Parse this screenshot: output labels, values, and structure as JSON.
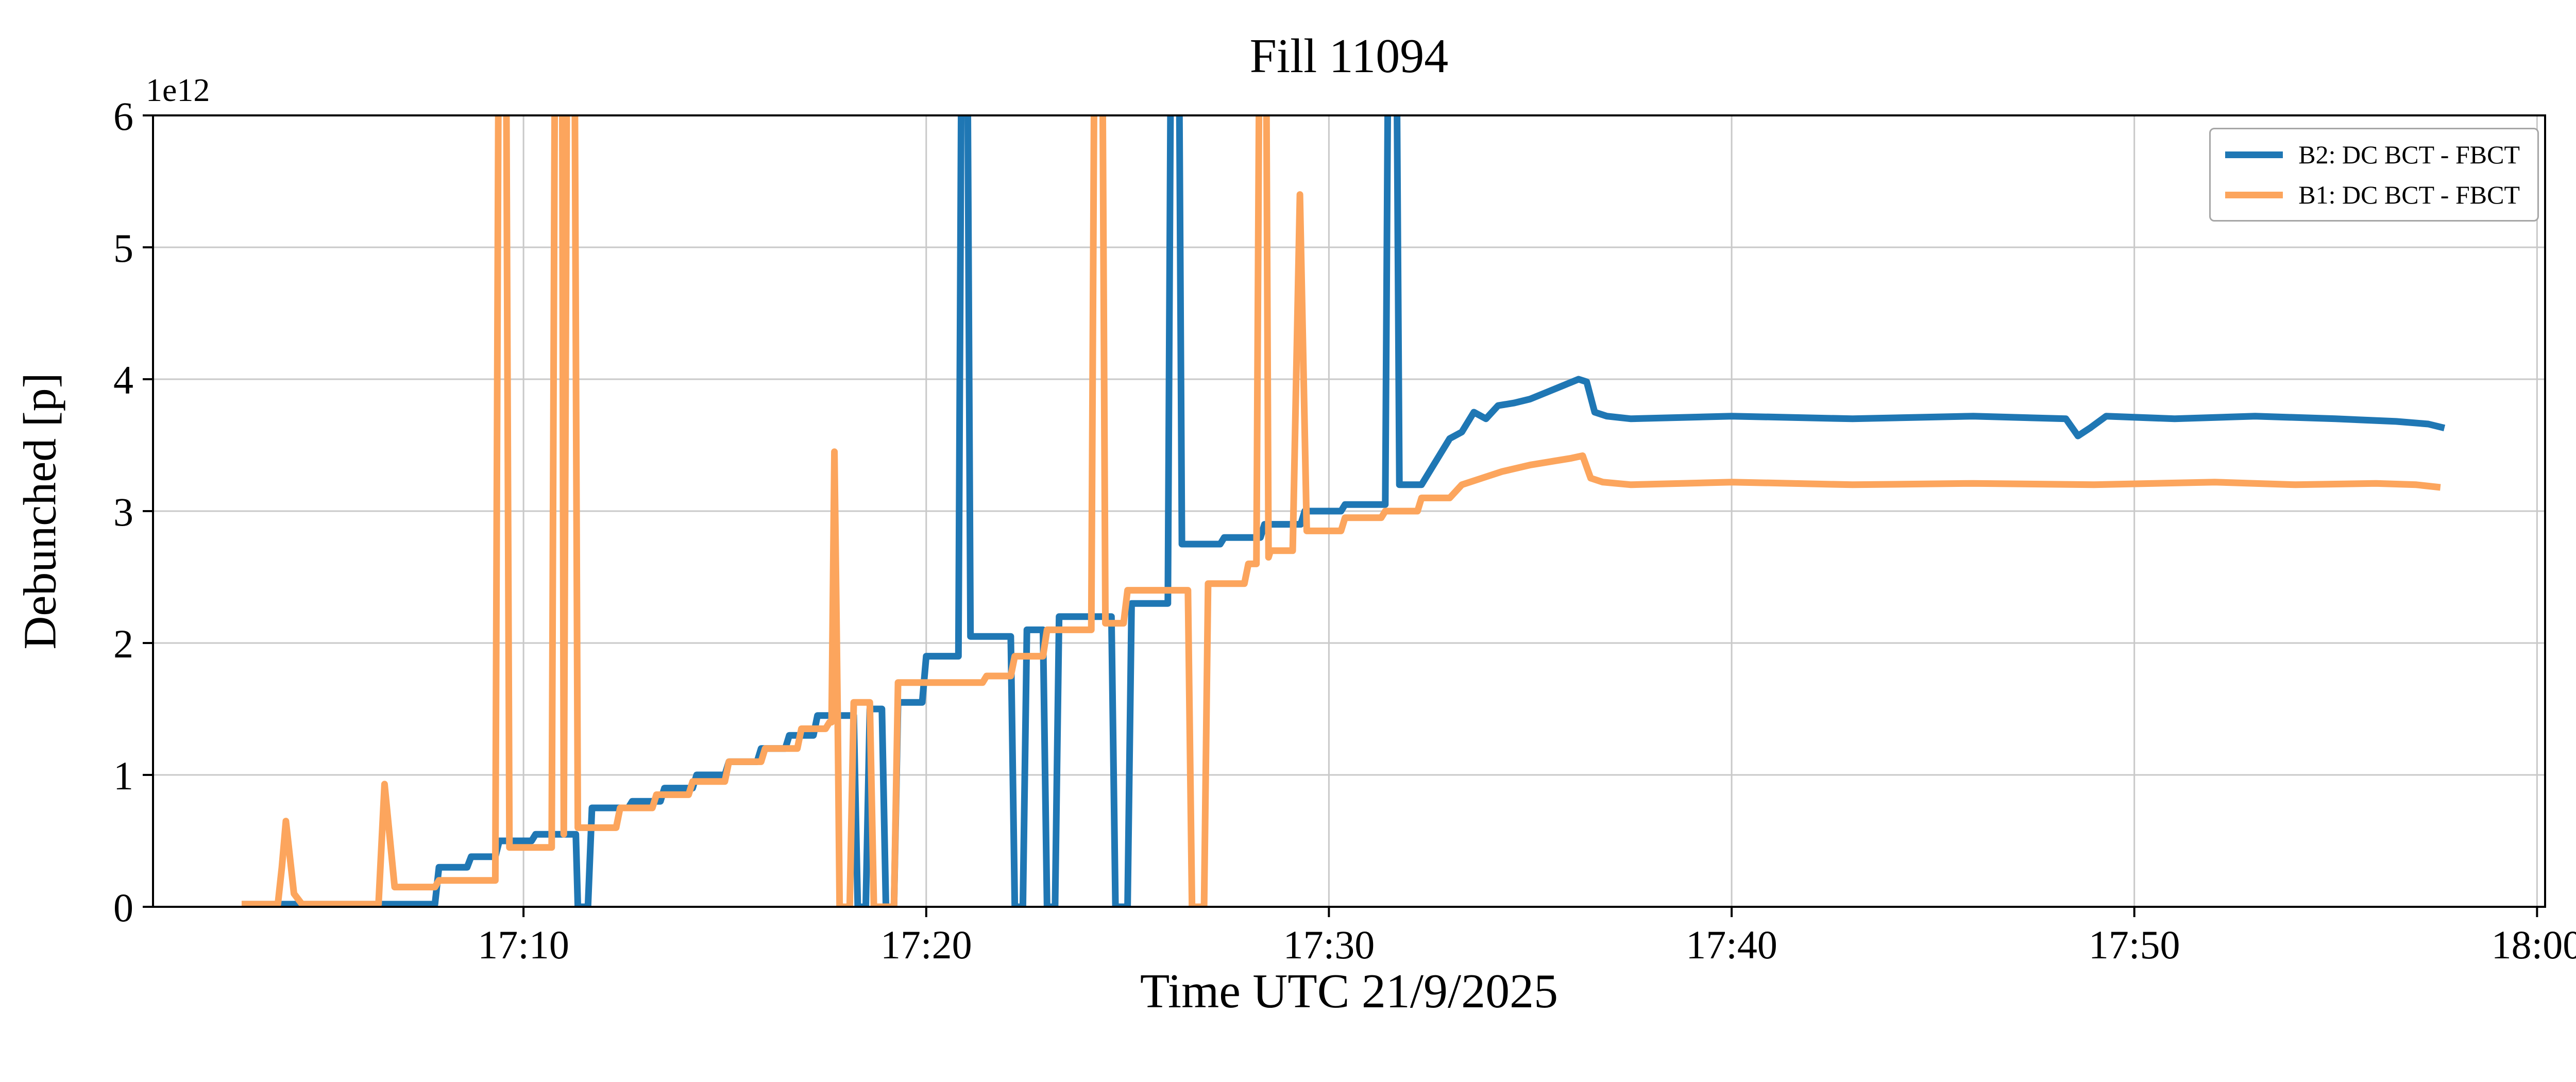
{
  "title": "Fill 11094",
  "xlabel": "Time UTC 21/9/2025",
  "ylabel": "Debunched [p]",
  "offset_text": "1e12",
  "legend": {
    "entries": [
      {
        "label": "B2: DC BCT - FBCT",
        "color": "#1f77b4"
      },
      {
        "label": "B1: DC BCT - FBCT",
        "color": "#fca55d"
      }
    ]
  },
  "chart_data": {
    "type": "line",
    "title": "Fill 11094",
    "xlabel": "Time UTC 21/9/2025",
    "ylabel": "Debunched [p]",
    "y_multiplier": "1e12",
    "x_unit": "minutes after 17:00 UTC",
    "xlim": [
      0.8,
      60.2
    ],
    "ylim": [
      0,
      6
    ],
    "grid": true,
    "legend_position": "upper right",
    "x_ticks": [
      {
        "t": 10,
        "label": "17:10"
      },
      {
        "t": 20,
        "label": "17:20"
      },
      {
        "t": 30,
        "label": "17:30"
      },
      {
        "t": 40,
        "label": "17:40"
      },
      {
        "t": 50,
        "label": "17:50"
      },
      {
        "t": 60,
        "label": "18:00"
      }
    ],
    "y_ticks": [
      {
        "v": 0,
        "label": "0"
      },
      {
        "v": 1,
        "label": "1"
      },
      {
        "v": 2,
        "label": "2"
      },
      {
        "v": 3,
        "label": "3"
      },
      {
        "v": 4,
        "label": "4"
      },
      {
        "v": 5,
        "label": "5"
      },
      {
        "v": 6,
        "label": "6"
      }
    ],
    "series": [
      {
        "name": "B2: DC BCT - FBCT",
        "color": "#1f77b4",
        "points": [
          [
            3.0,
            0.02
          ],
          [
            7.8,
            0.02
          ],
          [
            7.9,
            0.3
          ],
          [
            8.6,
            0.3
          ],
          [
            8.7,
            0.38
          ],
          [
            9.3,
            0.38
          ],
          [
            9.4,
            0.5
          ],
          [
            10.2,
            0.5
          ],
          [
            10.3,
            0.55
          ],
          [
            11.3,
            0.55
          ],
          [
            11.35,
            0.0
          ],
          [
            11.6,
            0.0
          ],
          [
            11.7,
            0.75
          ],
          [
            12.6,
            0.75
          ],
          [
            12.7,
            0.8
          ],
          [
            13.4,
            0.8
          ],
          [
            13.5,
            0.9
          ],
          [
            14.2,
            0.9
          ],
          [
            14.3,
            1.0
          ],
          [
            15.0,
            1.0
          ],
          [
            15.1,
            1.1
          ],
          [
            15.8,
            1.1
          ],
          [
            15.9,
            1.2
          ],
          [
            16.5,
            1.2
          ],
          [
            16.6,
            1.3
          ],
          [
            17.2,
            1.3
          ],
          [
            17.3,
            1.45
          ],
          [
            18.2,
            1.45
          ],
          [
            18.3,
            0.0
          ],
          [
            18.5,
            0.0
          ],
          [
            18.6,
            1.5
          ],
          [
            18.9,
            1.5
          ],
          [
            19.0,
            0.0
          ],
          [
            19.2,
            0.0
          ],
          [
            19.3,
            1.55
          ],
          [
            19.9,
            1.55
          ],
          [
            20.0,
            1.9
          ],
          [
            20.8,
            1.9
          ],
          [
            20.9,
            8.0
          ],
          [
            21.0,
            8.0
          ],
          [
            21.1,
            2.05
          ],
          [
            22.1,
            2.05
          ],
          [
            22.2,
            0.0
          ],
          [
            22.4,
            0.0
          ],
          [
            22.5,
            2.1
          ],
          [
            22.9,
            2.1
          ],
          [
            23.0,
            0.0
          ],
          [
            23.2,
            0.0
          ],
          [
            23.3,
            2.2
          ],
          [
            24.6,
            2.2
          ],
          [
            24.7,
            0.0
          ],
          [
            25.0,
            0.0
          ],
          [
            25.1,
            2.3
          ],
          [
            26.0,
            2.3
          ],
          [
            26.1,
            8.0
          ],
          [
            26.25,
            8.0
          ],
          [
            26.35,
            2.75
          ],
          [
            27.3,
            2.75
          ],
          [
            27.4,
            2.8
          ],
          [
            28.3,
            2.8
          ],
          [
            28.4,
            2.9
          ],
          [
            29.3,
            2.9
          ],
          [
            29.4,
            3.0
          ],
          [
            30.3,
            3.0
          ],
          [
            30.4,
            3.05
          ],
          [
            31.4,
            3.05
          ],
          [
            31.5,
            8.0
          ],
          [
            31.65,
            8.0
          ],
          [
            31.75,
            3.2
          ],
          [
            32.3,
            3.2
          ],
          [
            32.6,
            3.35
          ],
          [
            33.0,
            3.55
          ],
          [
            33.3,
            3.6
          ],
          [
            33.6,
            3.75
          ],
          [
            33.9,
            3.7
          ],
          [
            34.2,
            3.8
          ],
          [
            34.6,
            3.82
          ],
          [
            35.0,
            3.85
          ],
          [
            35.4,
            3.9
          ],
          [
            35.8,
            3.95
          ],
          [
            36.2,
            4.0
          ],
          [
            36.4,
            3.98
          ],
          [
            36.6,
            3.75
          ],
          [
            36.9,
            3.72
          ],
          [
            37.5,
            3.7
          ],
          [
            40.0,
            3.72
          ],
          [
            43.0,
            3.7
          ],
          [
            46.0,
            3.72
          ],
          [
            48.3,
            3.7
          ],
          [
            48.6,
            3.57
          ],
          [
            48.9,
            3.63
          ],
          [
            49.3,
            3.72
          ],
          [
            51.0,
            3.7
          ],
          [
            53.0,
            3.72
          ],
          [
            55.0,
            3.7
          ],
          [
            56.5,
            3.68
          ],
          [
            57.3,
            3.66
          ],
          [
            57.7,
            3.63
          ]
        ]
      },
      {
        "name": "B1: DC BCT - FBCT",
        "color": "#fca55d",
        "points": [
          [
            3.0,
            0.02
          ],
          [
            3.9,
            0.02
          ],
          [
            4.0,
            0.3
          ],
          [
            4.1,
            0.65
          ],
          [
            4.3,
            0.1
          ],
          [
            4.5,
            0.02
          ],
          [
            6.4,
            0.02
          ],
          [
            6.55,
            0.93
          ],
          [
            6.8,
            0.15
          ],
          [
            7.8,
            0.15
          ],
          [
            7.9,
            0.2
          ],
          [
            9.3,
            0.2
          ],
          [
            9.4,
            8.0
          ],
          [
            9.55,
            8.0
          ],
          [
            9.65,
            0.45
          ],
          [
            10.7,
            0.45
          ],
          [
            10.8,
            8.0
          ],
          [
            10.95,
            8.0
          ],
          [
            11.0,
            0.55
          ],
          [
            11.1,
            8.0
          ],
          [
            11.25,
            8.0
          ],
          [
            11.35,
            0.6
          ],
          [
            12.3,
            0.6
          ],
          [
            12.4,
            0.75
          ],
          [
            13.2,
            0.75
          ],
          [
            13.3,
            0.85
          ],
          [
            14.1,
            0.85
          ],
          [
            14.2,
            0.95
          ],
          [
            15.0,
            0.95
          ],
          [
            15.1,
            1.1
          ],
          [
            15.9,
            1.1
          ],
          [
            16.0,
            1.2
          ],
          [
            16.8,
            1.2
          ],
          [
            16.9,
            1.35
          ],
          [
            17.5,
            1.35
          ],
          [
            17.6,
            1.4
          ],
          [
            17.65,
            1.4
          ],
          [
            17.72,
            3.45
          ],
          [
            17.8,
            1.5
          ],
          [
            17.85,
            0.0
          ],
          [
            18.1,
            0.0
          ],
          [
            18.2,
            1.55
          ],
          [
            18.6,
            1.55
          ],
          [
            18.7,
            0.0
          ],
          [
            19.2,
            0.0
          ],
          [
            19.3,
            1.7
          ],
          [
            21.4,
            1.7
          ],
          [
            21.5,
            1.75
          ],
          [
            22.1,
            1.75
          ],
          [
            22.2,
            1.9
          ],
          [
            22.9,
            1.9
          ],
          [
            23.0,
            2.1
          ],
          [
            24.1,
            2.1
          ],
          [
            24.2,
            8.0
          ],
          [
            24.35,
            8.0
          ],
          [
            24.45,
            2.15
          ],
          [
            24.9,
            2.15
          ],
          [
            25.0,
            2.4
          ],
          [
            26.5,
            2.4
          ],
          [
            26.6,
            0.0
          ],
          [
            26.9,
            0.0
          ],
          [
            27.0,
            2.45
          ],
          [
            27.9,
            2.45
          ],
          [
            28.0,
            2.6
          ],
          [
            28.2,
            2.6
          ],
          [
            28.3,
            8.0
          ],
          [
            28.42,
            8.0
          ],
          [
            28.5,
            2.65
          ],
          [
            28.55,
            2.7
          ],
          [
            29.1,
            2.7
          ],
          [
            29.28,
            5.4
          ],
          [
            29.45,
            2.85
          ],
          [
            30.3,
            2.85
          ],
          [
            30.4,
            2.95
          ],
          [
            31.3,
            2.95
          ],
          [
            31.4,
            3.0
          ],
          [
            32.2,
            3.0
          ],
          [
            32.3,
            3.1
          ],
          [
            33.0,
            3.1
          ],
          [
            33.3,
            3.2
          ],
          [
            33.8,
            3.25
          ],
          [
            34.3,
            3.3
          ],
          [
            35.0,
            3.35
          ],
          [
            35.6,
            3.38
          ],
          [
            36.0,
            3.4
          ],
          [
            36.3,
            3.42
          ],
          [
            36.5,
            3.25
          ],
          [
            36.8,
            3.22
          ],
          [
            37.5,
            3.2
          ],
          [
            40.0,
            3.22
          ],
          [
            43.0,
            3.2
          ],
          [
            46.0,
            3.21
          ],
          [
            49.0,
            3.2
          ],
          [
            52.0,
            3.22
          ],
          [
            54.0,
            3.2
          ],
          [
            56.0,
            3.21
          ],
          [
            57.0,
            3.2
          ],
          [
            57.6,
            3.18
          ]
        ]
      }
    ]
  }
}
